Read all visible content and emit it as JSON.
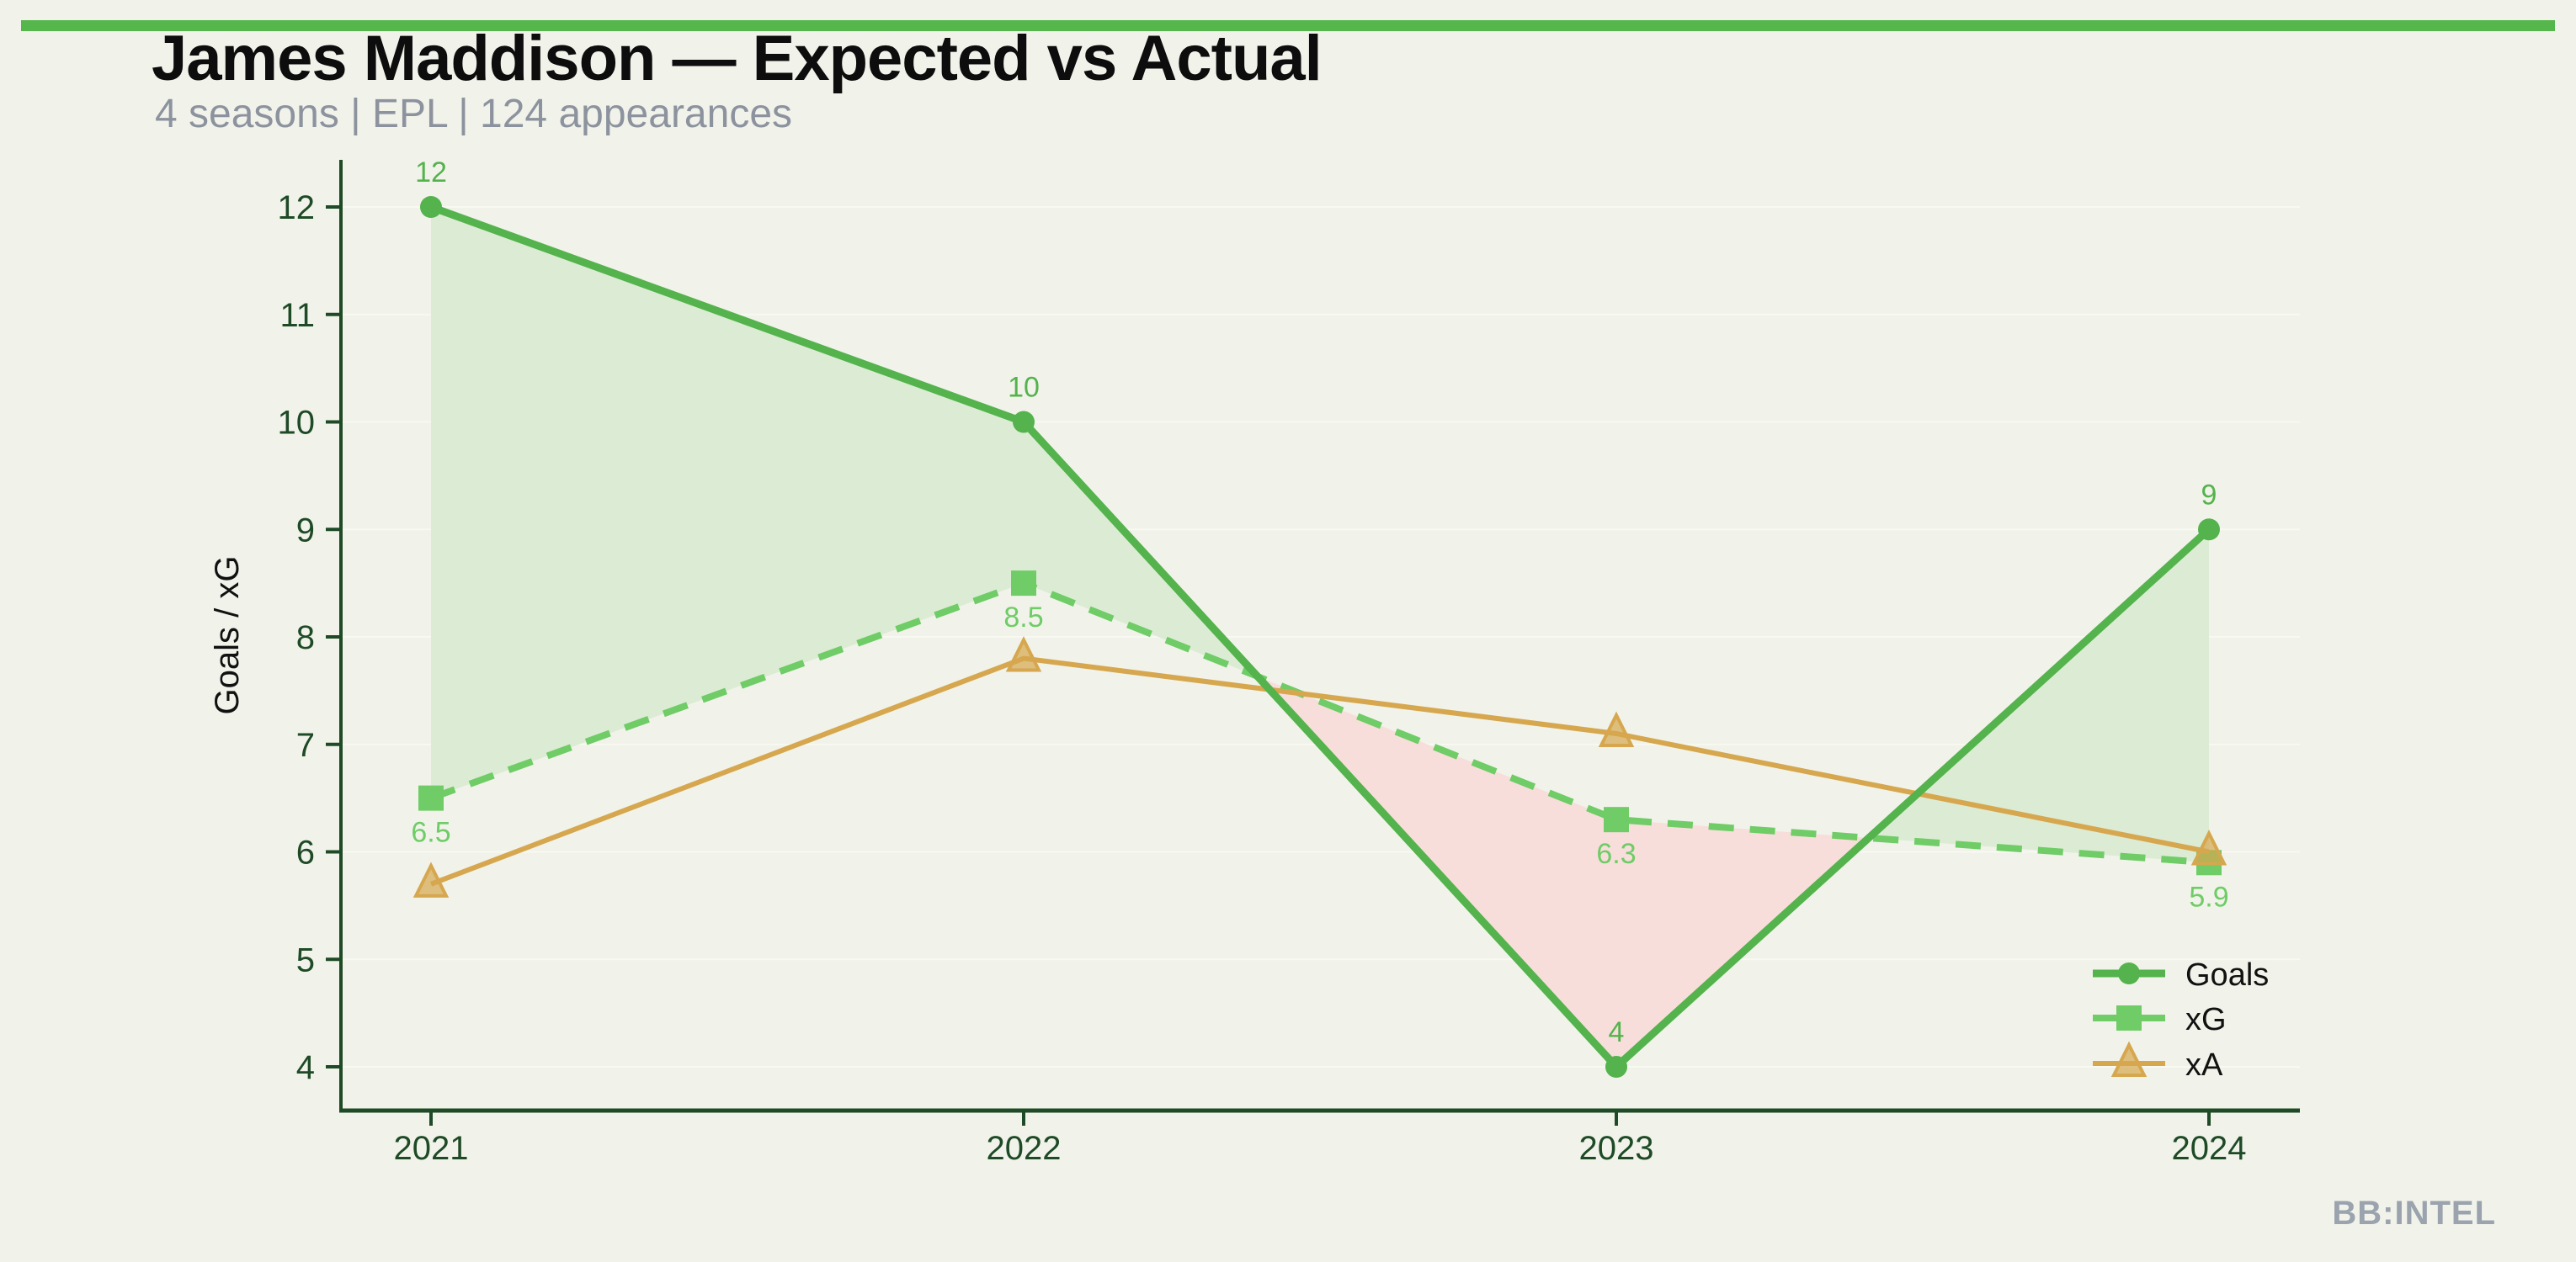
{
  "page": {
    "background": "#f1f3ea",
    "accent_color": "#55b64b"
  },
  "header": {
    "title": "James Maddison — Expected vs Actual",
    "subtitle": "4 seasons | EPL | 124 appearances"
  },
  "watermark": {
    "label": "BB:INTEL"
  },
  "chart_data": {
    "type": "line",
    "title": "James Maddison — Expected vs Actual",
    "categories": [
      "2021",
      "2022",
      "2023",
      "2024"
    ],
    "series": [
      {
        "name": "Goals",
        "values": [
          12,
          10,
          4,
          9
        ],
        "color": "#54b34c",
        "marker": "circle",
        "line_style": "solid",
        "line_width": 9,
        "labels": [
          "12",
          "10",
          "4",
          "9"
        ],
        "label_position": "above"
      },
      {
        "name": "xG",
        "values": [
          6.5,
          8.5,
          6.3,
          5.9
        ],
        "color": "#6fcc66",
        "marker": "square",
        "line_style": "dashed",
        "line_width": 8,
        "labels": [
          "6.5",
          "8.5",
          "6.3",
          "5.9"
        ],
        "label_position": "below"
      },
      {
        "name": "xA",
        "values": [
          5.7,
          7.8,
          7.1,
          6.0
        ],
        "color": "#d6a74e",
        "marker": "triangle",
        "line_style": "solid",
        "line_width": 6,
        "labels": null,
        "label_position": "none"
      }
    ],
    "fills": {
      "between": [
        "Goals",
        "xG"
      ],
      "positive_color": "#dcecd4",
      "negative_color": "#f7dedb"
    },
    "xlabel": "",
    "ylabel": "Goals / xG",
    "yticks": [
      4,
      5,
      6,
      7,
      8,
      9,
      10,
      11,
      12
    ],
    "ylim": [
      4,
      12.4
    ],
    "grid": "horizontal",
    "gridline_color": "#f8faf1",
    "axis_color": "#1e4a26",
    "tick_label_color": "#1e4a26",
    "legend_position": "lower right",
    "legend_text_color": "#111111"
  }
}
